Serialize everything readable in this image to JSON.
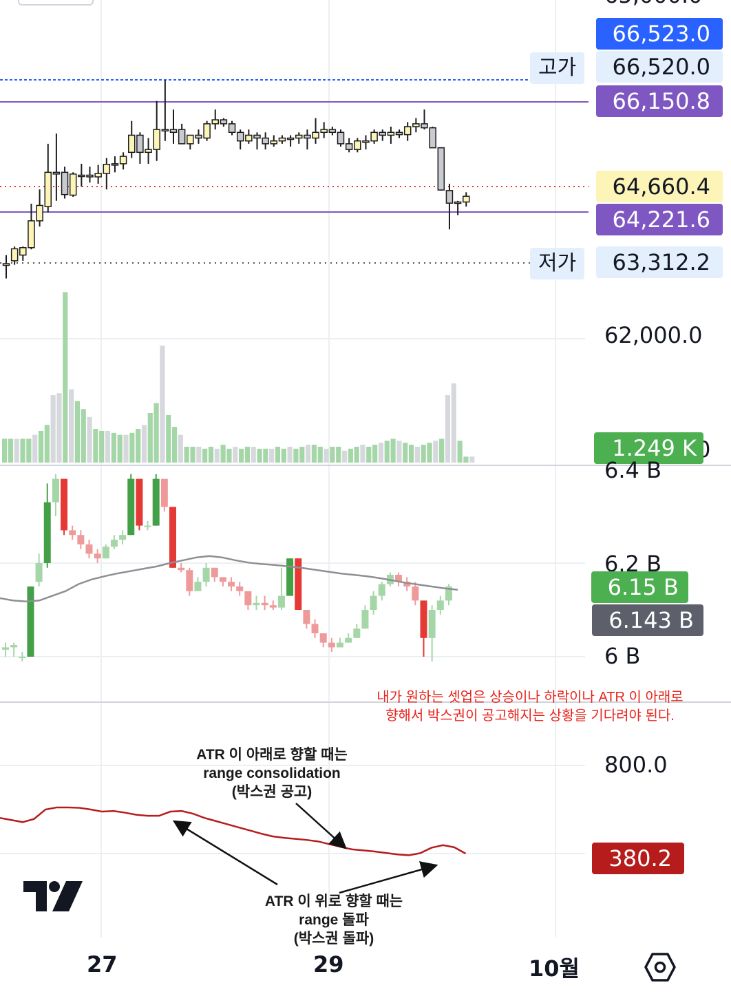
{
  "price_axis": {
    "labels": [
      "66,523.0",
      "66,520.0",
      "66,150.8",
      "64,660.4",
      "64,221.6",
      "63,312.2",
      "62,000.0"
    ],
    "high_label": "고가",
    "low_label": "저가",
    "colors": {
      "blue": "#2962ff",
      "purple": "#7e57c2",
      "yellow": "#fdf4b8",
      "light": "#e3effc"
    }
  },
  "volume": {
    "last_label": "1.249 K",
    "cut_label": "0",
    "color": "#4caf50"
  },
  "oi": {
    "axis_labels": [
      "6.4 B",
      "6.2 B",
      "6 B"
    ],
    "last_label": "6.15 B",
    "ma_label": "6.143 B"
  },
  "atr": {
    "axis_label": "800.0",
    "last_label": "380.2",
    "color": "#b71c1c"
  },
  "x_axis": {
    "labels": [
      "27",
      "29",
      "10월"
    ]
  },
  "annotations": {
    "red_note": [
      "내가 원하는 셋업은 상승이나 하락이나 ATR 이 아래로",
      "향해서 박스권이 공고해지는 상황을 기다려야 된다."
    ],
    "down_note": [
      "ATR 이 아래로 향할 때는",
      "range consolidation",
      "(박스권 공고)"
    ],
    "up_note": [
      "ATR 이 위로 향할 때는",
      "range 돌파",
      "(박스권 돌파)"
    ]
  },
  "icons": {
    "logo": "tradingview-logo",
    "settings": "hexagon-settings-icon"
  },
  "chart_data": [
    {
      "type": "candlestick",
      "series_name": "",
      "levels": {
        "high": 66520.0,
        "low": 63312.2,
        "last": 64660.4,
        "line_a": 66150.8,
        "line_b": 64221.6
      },
      "ohlc": [
        [
          63270,
          63450,
          63040,
          63300
        ],
        [
          63350,
          63600,
          63280,
          63560
        ],
        [
          63450,
          63600,
          63350,
          63580
        ],
        [
          63580,
          64350,
          63550,
          64050
        ],
        [
          64050,
          64600,
          63950,
          64320
        ],
        [
          64300,
          65400,
          64200,
          64900
        ],
        [
          64900,
          65580,
          64400,
          64870
        ],
        [
          64900,
          65000,
          64440,
          64510
        ],
        [
          64500,
          64900,
          64470,
          64870
        ],
        [
          64850,
          65050,
          64650,
          64850
        ],
        [
          64850,
          65000,
          64720,
          64820
        ],
        [
          64820,
          65030,
          64700,
          64880
        ],
        [
          64880,
          65150,
          64600,
          65040
        ],
        [
          65040,
          65180,
          64900,
          65050
        ],
        [
          65050,
          65250,
          64950,
          65180
        ],
        [
          65250,
          65800,
          65150,
          65550
        ],
        [
          65550,
          65600,
          65050,
          65250
        ],
        [
          65250,
          65500,
          65050,
          65300
        ],
        [
          65300,
          66150,
          65100,
          65650
        ],
        [
          65650,
          66520,
          65450,
          65650
        ],
        [
          65650,
          66000,
          65400,
          65600
        ],
        [
          65650,
          65750,
          65400,
          65400
        ],
        [
          65400,
          65550,
          65300,
          65550
        ],
        [
          65550,
          65650,
          65400,
          65500
        ],
        [
          65500,
          65800,
          65450,
          65750
        ],
        [
          65750,
          66000,
          65650,
          65820
        ],
        [
          65820,
          65850,
          65700,
          65750
        ],
        [
          65750,
          65800,
          65550,
          65600
        ],
        [
          65600,
          65650,
          65300,
          65450
        ],
        [
          65450,
          65650,
          65400,
          65550
        ],
        [
          65550,
          65600,
          65300,
          65500
        ],
        [
          65500,
          65600,
          65300,
          65400
        ],
        [
          65400,
          65550,
          65350,
          65450
        ],
        [
          65450,
          65550,
          65400,
          65500
        ],
        [
          65500,
          65550,
          65350,
          65500
        ],
        [
          65500,
          65600,
          65400,
          65550
        ],
        [
          65550,
          65650,
          65300,
          65500
        ],
        [
          65500,
          65850,
          65400,
          65600
        ],
        [
          65600,
          65780,
          65500,
          65650
        ],
        [
          65650,
          65700,
          65550,
          65600
        ],
        [
          65600,
          65650,
          65350,
          65400
        ],
        [
          65400,
          65500,
          65250,
          65300
        ],
        [
          65300,
          65500,
          65250,
          65450
        ],
        [
          65450,
          65550,
          65300,
          65450
        ],
        [
          65450,
          65650,
          65400,
          65600
        ],
        [
          65600,
          65650,
          65450,
          65550
        ],
        [
          65550,
          65700,
          65400,
          65600
        ],
        [
          65600,
          65650,
          65500,
          65560
        ],
        [
          65560,
          65780,
          65450,
          65700
        ],
        [
          65700,
          65850,
          65600,
          65750
        ],
        [
          65750,
          66000,
          65650,
          65680
        ],
        [
          65680,
          65700,
          65350,
          65330
        ],
        [
          65330,
          65340,
          64580,
          64590
        ],
        [
          64580,
          64700,
          63900,
          64360
        ],
        [
          64360,
          64400,
          64150,
          64380
        ],
        [
          64380,
          64550,
          64300,
          64480
        ]
      ]
    },
    {
      "type": "bar",
      "series_name": "",
      "values": [
        12,
        12,
        12,
        12,
        12,
        14,
        16,
        19,
        34,
        35,
        86,
        37,
        31,
        27,
        23,
        17,
        16,
        16,
        15,
        14,
        14,
        15,
        17,
        19,
        25,
        30,
        59,
        24,
        18,
        14,
        8,
        8,
        8,
        7,
        8,
        7,
        9,
        7,
        8,
        7,
        8,
        8,
        7,
        7,
        7,
        8,
        7,
        8,
        7,
        8,
        9,
        9,
        8,
        7,
        8,
        8,
        6,
        7,
        8,
        9,
        8,
        9,
        10,
        11,
        12,
        11,
        10,
        9,
        8,
        9,
        10,
        11,
        12,
        34,
        40,
        11,
        3,
        3
      ]
    },
    {
      "type": "candlestick",
      "series_name": "",
      "ylim": [
        5.985,
        6.4
      ],
      "candles": [
        [
          6.015,
          6.02,
          6.03,
          6.0
        ],
        [
          6.02,
          6.025,
          6.03,
          6.0
        ],
        [
          6.0,
          6.0,
          6.01,
          5.99
        ],
        [
          6.0,
          6.15,
          6.15,
          6.0
        ],
        [
          6.16,
          6.2,
          6.22,
          6.15
        ],
        [
          6.2,
          6.33,
          6.37,
          6.19
        ],
        [
          6.33,
          6.38,
          6.39,
          6.3
        ],
        [
          6.38,
          6.27,
          6.38,
          6.26
        ],
        [
          6.27,
          6.26,
          6.28,
          6.25
        ],
        [
          6.26,
          6.24,
          6.27,
          6.23
        ],
        [
          6.24,
          6.22,
          6.25,
          6.21
        ],
        [
          6.22,
          6.21,
          6.23,
          6.2
        ],
        [
          6.21,
          6.235,
          6.24,
          6.21
        ],
        [
          6.235,
          6.25,
          6.26,
          6.23
        ],
        [
          6.25,
          6.26,
          6.27,
          6.24
        ],
        [
          6.26,
          6.38,
          6.39,
          6.26
        ],
        [
          6.38,
          6.28,
          6.38,
          6.27
        ],
        [
          6.28,
          6.28,
          6.29,
          6.27
        ],
        [
          6.28,
          6.38,
          6.39,
          6.28
        ],
        [
          6.38,
          6.32,
          6.38,
          6.31
        ],
        [
          6.32,
          6.19,
          6.32,
          6.19
        ],
        [
          6.19,
          6.185,
          6.2,
          6.18
        ],
        [
          6.185,
          6.14,
          6.19,
          6.13
        ],
        [
          6.14,
          6.16,
          6.17,
          6.14
        ],
        [
          6.16,
          6.19,
          6.2,
          6.15
        ],
        [
          6.19,
          6.17,
          6.19,
          6.16
        ],
        [
          6.17,
          6.16,
          6.17,
          6.15
        ],
        [
          6.16,
          6.15,
          6.17,
          6.14
        ],
        [
          6.15,
          6.14,
          6.16,
          6.13
        ],
        [
          6.14,
          6.11,
          6.14,
          6.1
        ],
        [
          6.11,
          6.115,
          6.13,
          6.1
        ],
        [
          6.115,
          6.11,
          6.13,
          6.1
        ],
        [
          6.11,
          6.105,
          6.12,
          6.1
        ],
        [
          6.105,
          6.13,
          6.19,
          6.1
        ],
        [
          6.13,
          6.21,
          6.21,
          6.13
        ],
        [
          6.21,
          6.1,
          6.21,
          6.1
        ],
        [
          6.1,
          6.07,
          6.1,
          6.06
        ],
        [
          6.07,
          6.05,
          6.08,
          6.04
        ],
        [
          6.05,
          6.03,
          6.05,
          6.02
        ],
        [
          6.03,
          6.02,
          6.04,
          6.01
        ],
        [
          6.02,
          6.03,
          6.04,
          6.02
        ],
        [
          6.03,
          6.04,
          6.05,
          6.03
        ],
        [
          6.04,
          6.06,
          6.07,
          6.04
        ],
        [
          6.06,
          6.1,
          6.11,
          6.06
        ],
        [
          6.1,
          6.13,
          6.14,
          6.09
        ],
        [
          6.13,
          6.155,
          6.16,
          6.12
        ],
        [
          6.155,
          6.175,
          6.18,
          6.15
        ],
        [
          6.175,
          6.16,
          6.18,
          6.15
        ],
        [
          6.16,
          6.15,
          6.17,
          6.14
        ],
        [
          6.15,
          6.12,
          6.16,
          6.11
        ],
        [
          6.12,
          6.04,
          6.12,
          6.0
        ],
        [
          6.04,
          6.1,
          6.11,
          5.99
        ],
        [
          6.1,
          6.12,
          6.13,
          6.09
        ],
        [
          6.12,
          6.15,
          6.155,
          6.11
        ]
      ],
      "ma": [
        6.125,
        6.12,
        6.118,
        6.12,
        6.13,
        6.14,
        6.155,
        6.165,
        6.172,
        6.178,
        6.183,
        6.188,
        6.193,
        6.2,
        6.206,
        6.212,
        6.215,
        6.212,
        6.206,
        6.201,
        6.198,
        6.196,
        6.193,
        6.19,
        6.186,
        6.182,
        6.178,
        6.175,
        6.172,
        6.168,
        6.163,
        6.158,
        6.154,
        6.15,
        6.146,
        6.143
      ]
    },
    {
      "type": "line",
      "series_name": "ATR",
      "ylim": [
        250,
        860
      ],
      "values": [
        550,
        540,
        530,
        545,
        590,
        600,
        600,
        598,
        590,
        580,
        583,
        575,
        565,
        560,
        560,
        580,
        583,
        570,
        550,
        535,
        520,
        505,
        490,
        475,
        462,
        455,
        450,
        445,
        438,
        425,
        412,
        400,
        395,
        390,
        383,
        376,
        372,
        382,
        408,
        420,
        410,
        380
      ]
    }
  ]
}
